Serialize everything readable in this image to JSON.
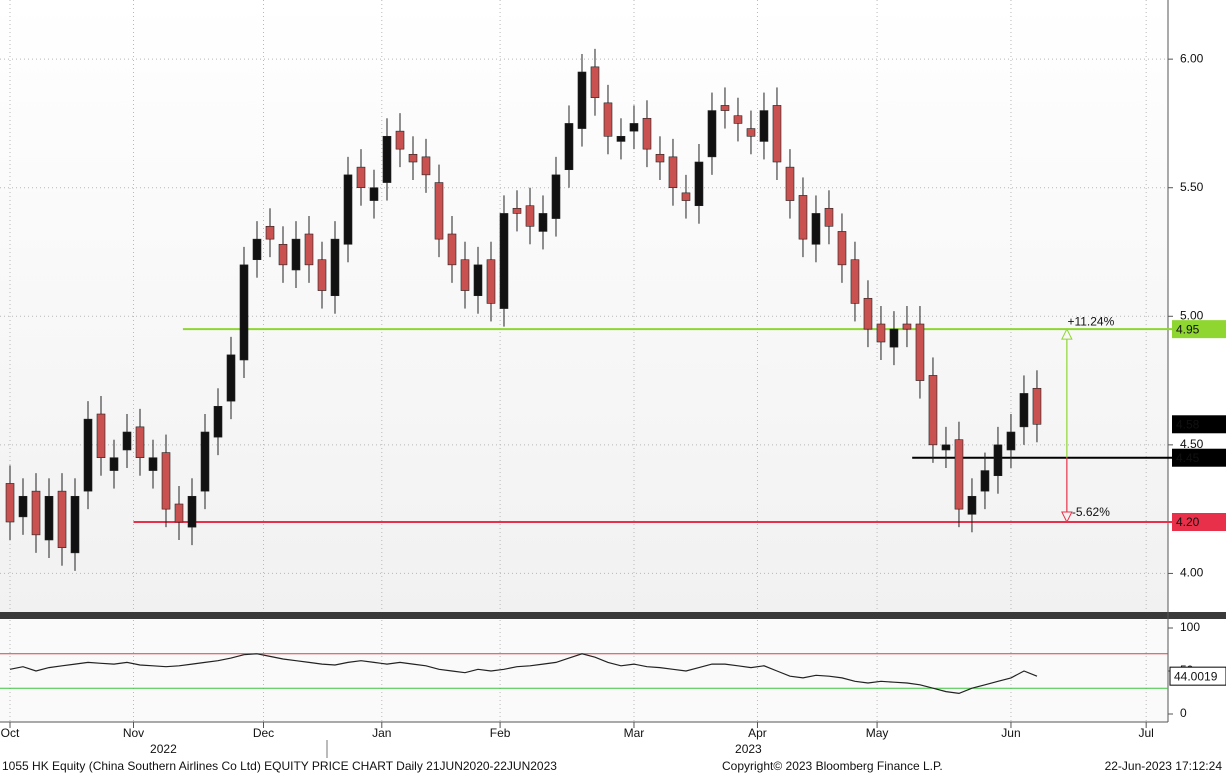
{
  "chart_data": [
    {
      "type": "candlestick",
      "open": [
        4.35,
        4.22,
        4.32,
        4.13,
        4.32,
        4.08,
        4.32,
        4.62,
        4.4,
        4.48,
        4.57,
        4.4,
        4.47,
        4.27,
        4.18,
        4.32,
        4.53,
        4.67,
        4.83,
        5.22,
        5.35,
        5.28,
        5.18,
        5.32,
        5.22,
        5.08,
        5.28,
        5.58,
        5.45,
        5.52,
        5.72,
        5.63,
        5.62,
        5.52,
        5.32,
        5.22,
        5.08,
        5.22,
        5.03,
        5.42,
        5.43,
        5.33,
        5.38,
        5.57,
        5.73,
        5.97,
        5.83,
        5.68,
        5.72,
        5.77,
        5.63,
        5.62,
        5.48,
        5.43,
        5.62,
        5.82,
        5.78,
        5.73,
        5.68,
        5.82,
        5.58,
        5.47,
        5.28,
        5.42,
        5.33,
        5.22,
        5.07,
        4.97,
        4.88,
        4.97,
        4.97,
        4.77,
        4.48,
        4.52,
        4.23,
        4.32,
        4.38,
        4.48,
        4.57,
        4.72
      ],
      "high": [
        4.42,
        4.37,
        4.39,
        4.37,
        4.39,
        4.37,
        4.67,
        4.69,
        4.52,
        4.62,
        4.64,
        4.52,
        4.54,
        4.34,
        4.37,
        4.62,
        4.72,
        4.92,
        5.27,
        5.37,
        5.42,
        5.35,
        5.37,
        5.39,
        5.29,
        5.37,
        5.62,
        5.65,
        5.57,
        5.77,
        5.79,
        5.7,
        5.69,
        5.59,
        5.39,
        5.29,
        5.27,
        5.29,
        5.47,
        5.49,
        5.5,
        5.47,
        5.62,
        5.82,
        6.02,
        6.04,
        5.9,
        5.77,
        5.82,
        5.84,
        5.7,
        5.69,
        5.55,
        5.67,
        5.87,
        5.89,
        5.85,
        5.8,
        5.87,
        5.89,
        5.65,
        5.54,
        5.47,
        5.49,
        5.4,
        5.29,
        5.14,
        5.04,
        5.02,
        5.04,
        5.04,
        4.84,
        4.57,
        4.59,
        4.37,
        4.47,
        4.57,
        4.62,
        4.77,
        4.79
      ],
      "low": [
        4.13,
        4.15,
        4.08,
        4.06,
        4.03,
        4.01,
        4.25,
        4.38,
        4.33,
        4.41,
        4.38,
        4.33,
        4.18,
        4.13,
        4.11,
        4.25,
        4.46,
        4.6,
        4.76,
        5.15,
        5.23,
        5.13,
        5.11,
        5.13,
        5.03,
        5.01,
        5.21,
        5.43,
        5.38,
        5.45,
        5.58,
        5.53,
        5.48,
        5.23,
        5.13,
        5.03,
        5.01,
        4.98,
        4.96,
        5.33,
        5.28,
        5.26,
        5.31,
        5.5,
        5.66,
        5.78,
        5.63,
        5.61,
        5.65,
        5.58,
        5.53,
        5.43,
        5.38,
        5.36,
        5.55,
        5.73,
        5.68,
        5.63,
        5.61,
        5.53,
        5.38,
        5.23,
        5.21,
        5.28,
        5.13,
        4.98,
        4.88,
        4.83,
        4.81,
        4.88,
        4.68,
        4.43,
        4.41,
        4.18,
        4.16,
        4.25,
        4.31,
        4.41,
        4.5,
        4.51
      ],
      "close": [
        4.2,
        4.3,
        4.15,
        4.3,
        4.1,
        4.3,
        4.6,
        4.45,
        4.45,
        4.55,
        4.45,
        4.45,
        4.25,
        4.2,
        4.3,
        4.55,
        4.65,
        4.85,
        5.2,
        5.3,
        5.3,
        5.2,
        5.3,
        5.2,
        5.1,
        5.3,
        5.55,
        5.5,
        5.5,
        5.7,
        5.65,
        5.6,
        5.55,
        5.3,
        5.2,
        5.1,
        5.2,
        5.05,
        5.4,
        5.4,
        5.35,
        5.4,
        5.55,
        5.75,
        5.95,
        5.85,
        5.7,
        5.7,
        5.75,
        5.65,
        5.6,
        5.5,
        5.45,
        5.6,
        5.8,
        5.8,
        5.75,
        5.7,
        5.8,
        5.6,
        5.45,
        5.3,
        5.4,
        5.35,
        5.2,
        5.05,
        4.95,
        4.9,
        4.95,
        4.95,
        4.75,
        4.5,
        4.5,
        4.25,
        4.3,
        4.4,
        4.5,
        4.55,
        4.7,
        4.58
      ],
      "up_color": "#111111",
      "down_color": "#c9514f",
      "xlim": [
        -0.77,
        89.08
      ],
      "xticks": [
        {
          "value": 0,
          "label": "Oct"
        },
        {
          "value": 9.5,
          "label": "Nov"
        },
        {
          "value": 19.5,
          "label": "Dec"
        },
        {
          "value": 28.6,
          "label": "Jan"
        },
        {
          "value": 37.7,
          "label": "Feb"
        },
        {
          "value": 48.0,
          "label": "Mar"
        },
        {
          "value": 57.5,
          "label": "Apr"
        },
        {
          "value": 66.7,
          "label": "May"
        },
        {
          "value": 77.0,
          "label": "Jun"
        },
        {
          "value": 87.4,
          "label": "Jul"
        }
      ],
      "year_ticks": [
        {
          "value": 11.8,
          "label": "2022"
        },
        {
          "value": 56.8,
          "label": "2023"
        }
      ],
      "ylim": [
        3.85,
        6.23
      ],
      "yticks": [
        {
          "value": 4,
          "label": "4.00"
        },
        {
          "value": 4.5,
          "label": "4.50"
        },
        {
          "value": 5,
          "label": "5.00"
        },
        {
          "value": 5.5,
          "label": "5.50"
        },
        {
          "value": 6,
          "label": "6.00"
        }
      ],
      "grid": true,
      "levels": [
        {
          "value": 4.95,
          "label": "4.95",
          "color": "#8fd631",
          "text_color": "#111111",
          "from_x": 13.3
        },
        {
          "value": 4.45,
          "label": "4.45",
          "color": "#000000",
          "text_color": "#ffffff",
          "from_x": 69.4
        },
        {
          "value": 4.2,
          "label": "4.20",
          "color": "#e8304a",
          "text_color": "#ffffff",
          "from_x": 9.5
        }
      ],
      "annotations": [
        {
          "label": "+11.24%",
          "color": "#8fd631",
          "from": 4.45,
          "to": 4.95,
          "x": 81.3
        },
        {
          "label": "-5.62%",
          "color": "#e8304a",
          "from": 4.45,
          "to": 4.2,
          "x": 81.3
        }
      ]
    },
    {
      "type": "line",
      "values": [
        52,
        55,
        50,
        54,
        56,
        58,
        60,
        59,
        58,
        60,
        57,
        56,
        55,
        56,
        58,
        60,
        62,
        65,
        69,
        70,
        67,
        64,
        62,
        60,
        58,
        57,
        60,
        62,
        60,
        58,
        60,
        58,
        56,
        52,
        50,
        48,
        52,
        50,
        52,
        55,
        56,
        58,
        60,
        65,
        70,
        66,
        60,
        56,
        58,
        55,
        54,
        52,
        50,
        54,
        58,
        58,
        56,
        54,
        56,
        50,
        44,
        42,
        45,
        44,
        42,
        38,
        36,
        38,
        37,
        36,
        34,
        30,
        26,
        24,
        30,
        34,
        38,
        42,
        50,
        44.0019
      ],
      "color": "#222222",
      "ylim": [
        -9.3,
        109.3
      ],
      "yticks": [
        0,
        50,
        100
      ],
      "bands": [
        {
          "value": 70,
          "color": "#d94040"
        },
        {
          "value": 30,
          "color": "#3cc43c"
        }
      ]
    }
  ],
  "footer": {
    "left": "1055 HK Equity (China Southern Airlines Co Ltd) EQUITY PRICE CHART  Daily 21JUN2020-22JUN2023",
    "center": "Copyright© 2023 Bloomberg Finance L.P.",
    "right": "22-Jun-2023 17:12:24"
  }
}
